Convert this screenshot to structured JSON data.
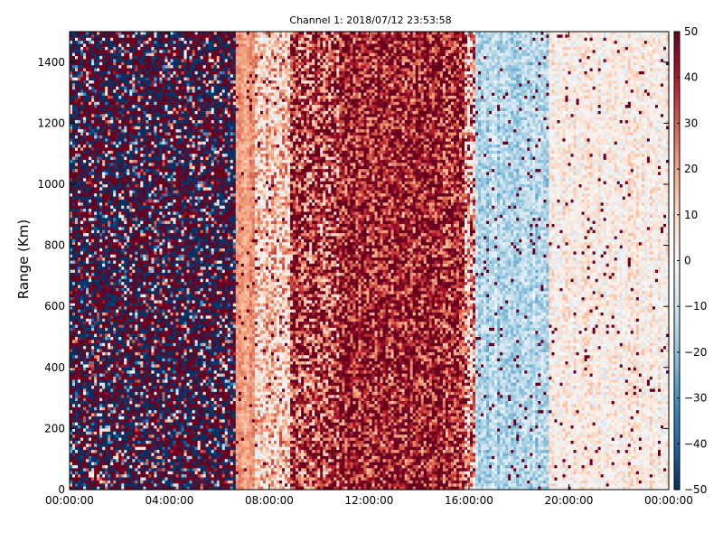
{
  "chart_data": {
    "type": "heatmap",
    "title": "Channel 1: 2018/07/12 23:53:58",
    "xlabel": "",
    "ylabel": "Range (Km)",
    "x_ticks": [
      "00:00:00",
      "04:00:00",
      "08:00:00",
      "12:00:00",
      "16:00:00",
      "20:00:00",
      "00:00:00"
    ],
    "x_range_hours": [
      0,
      24
    ],
    "ylim": [
      0,
      1500
    ],
    "y_ticks": [
      0,
      200,
      400,
      600,
      800,
      1000,
      1200,
      1400
    ],
    "colorbar": {
      "range": [
        -50,
        50
      ],
      "ticks": [
        50,
        40,
        30,
        20,
        10,
        0,
        -10,
        -20,
        -30,
        -40,
        -50
      ],
      "colormap": "RdBu_r"
    },
    "column_profile": [
      {
        "from_hour": 0.0,
        "to_hour": 6.7,
        "mean": 0,
        "noise": 48,
        "note": "saturated noise: dark red / dark blue"
      },
      {
        "from_hour": 6.7,
        "to_hour": 7.4,
        "mean": 22,
        "noise": 6
      },
      {
        "from_hour": 7.4,
        "to_hour": 8.8,
        "mean": 12,
        "noise": 20
      },
      {
        "from_hour": 8.8,
        "to_hour": 10.8,
        "mean": 35,
        "noise": 30
      },
      {
        "from_hour": 10.8,
        "to_hour": 15.8,
        "mean": 42,
        "noise": 25
      },
      {
        "from_hour": 15.8,
        "to_hour": 16.3,
        "mean": 20,
        "noise": 30
      },
      {
        "from_hour": 16.3,
        "to_hour": 19.2,
        "mean": -14,
        "noise": 10
      },
      {
        "from_hour": 19.2,
        "to_hour": 24.0,
        "mean": 3,
        "noise": 10
      }
    ]
  }
}
